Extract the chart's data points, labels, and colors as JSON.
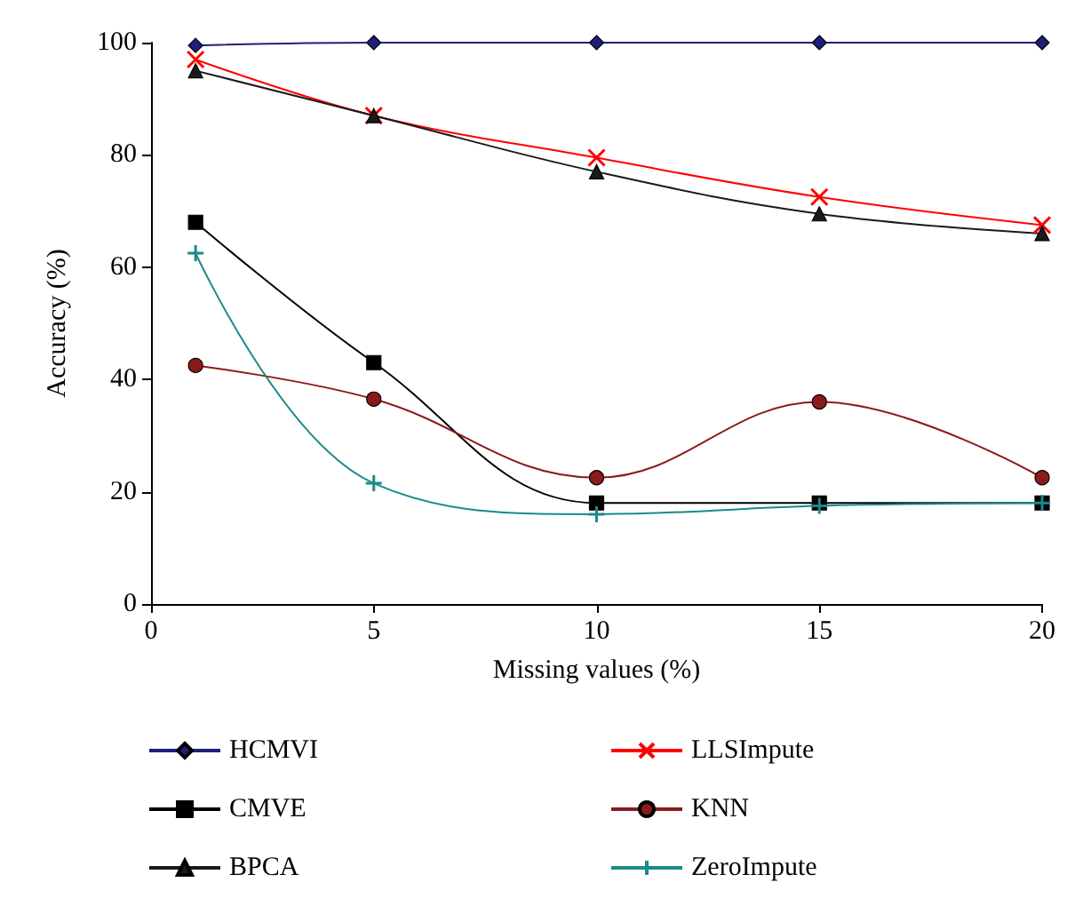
{
  "chart_data": {
    "type": "line",
    "xlabel": "Missing values (%)",
    "ylabel": "Accuracy (%)",
    "x": [
      1,
      5,
      10,
      15,
      20
    ],
    "xlim": [
      0,
      20
    ],
    "xticks": [
      0,
      5,
      10,
      15,
      20
    ],
    "ylim": [
      0,
      100
    ],
    "yticks": [
      0,
      20,
      40,
      60,
      80,
      100
    ],
    "grid": false,
    "legend": "bottom",
    "series": [
      {
        "name": "HCMVI",
        "color": "#1f1f7a",
        "marker": "diamond",
        "values": [
          99.5,
          100,
          100,
          100,
          100
        ]
      },
      {
        "name": "LLSImpute",
        "color": "#ff0000",
        "marker": "cross",
        "values": [
          97,
          87,
          79.5,
          72.5,
          67.5
        ]
      },
      {
        "name": "CMVE",
        "color": "#000000",
        "marker": "square",
        "values": [
          68,
          43,
          18,
          18,
          18
        ]
      },
      {
        "name": "KNN",
        "color": "#8b1a1a",
        "marker": "circle",
        "values": [
          42.5,
          36.5,
          22.5,
          36,
          22.5
        ]
      },
      {
        "name": "BPCA",
        "color": "#1a1a1a",
        "marker": "triangle",
        "values": [
          95,
          87,
          77,
          69.5,
          66
        ]
      },
      {
        "name": "ZeroImpute",
        "color": "#1a8a8a",
        "marker": "plus",
        "values": [
          62.5,
          21.5,
          16,
          17.5,
          18
        ]
      }
    ]
  }
}
